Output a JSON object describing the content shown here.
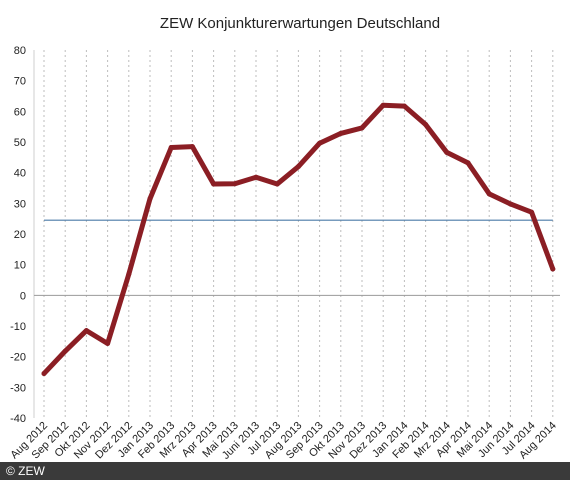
{
  "chart_data": {
    "type": "line",
    "title": "ZEW Konjunkturerwartungen Deutschland",
    "xlabel": "",
    "ylabel": "",
    "ylim": [
      -40,
      80
    ],
    "yticks": [
      80,
      70,
      60,
      50,
      40,
      30,
      20,
      10,
      0,
      -10,
      -20,
      -30,
      -40
    ],
    "grid": "vertical-dotted",
    "categories": [
      "Aug 2012",
      "Sep 2012",
      "Okt 2012",
      "Nov 2012",
      "Dez 2012",
      "Jan 2013",
      "Feb 2013",
      "Mrz 2013",
      "Apr 2013",
      "Mai 2013",
      "Juni 2013",
      "Jul 2013",
      "Aug 2013",
      "Sep 2013",
      "Okt 2013",
      "Nov 2013",
      "Dez 2013",
      "Jan 2014",
      "Feb 2014",
      "Mrz 2014",
      "Apr 2014",
      "Mai 2014",
      "Jun 2014",
      "Jul 2014",
      "Aug 2014"
    ],
    "series": [
      {
        "values": [
          -25.5,
          -18.2,
          -11.5,
          -15.7,
          6.9,
          31.5,
          48.2,
          48.5,
          36.3,
          36.4,
          38.5,
          36.3,
          42.0,
          49.6,
          52.8,
          54.6,
          62.0,
          61.7,
          55.7,
          46.6,
          43.2,
          33.1,
          29.8,
          27.1,
          8.6
        ],
        "color": "#8b1e24"
      }
    ],
    "reference_line": {
      "value": 24.5,
      "color": "#4a7aa7"
    },
    "zero_line_color": "#9a9a9a"
  },
  "footer": {
    "credit": "© ZEW"
  }
}
